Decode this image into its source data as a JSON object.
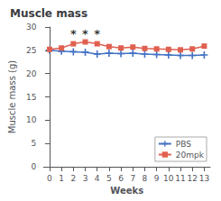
{
  "chart_data": {
    "type": "line",
    "title": "Muscle mass",
    "xlabel": "Weeks",
    "ylabel": "Muscle mass (g)",
    "x": [
      0,
      1,
      2,
      3,
      4,
      5,
      6,
      7,
      8,
      9,
      10,
      11,
      12,
      13
    ],
    "series": [
      {
        "name": "PBS",
        "color": "#4472C4",
        "marker": "plus",
        "values": [
          25.0,
          24.8,
          24.7,
          24.6,
          24.2,
          24.4,
          24.3,
          24.4,
          24.2,
          24.1,
          24.0,
          23.9,
          23.9,
          24.0
        ]
      },
      {
        "name": "20mpk",
        "color": "#E06050",
        "marker": "square",
        "values": [
          25.2,
          25.5,
          26.4,
          26.8,
          26.4,
          25.8,
          25.5,
          25.7,
          25.4,
          25.3,
          25.2,
          25.1,
          25.3,
          25.9
        ]
      }
    ],
    "annotations": [
      {
        "x": 2,
        "y": 28.6,
        "text": "*"
      },
      {
        "x": 3,
        "y": 28.6,
        "text": "*"
      },
      {
        "x": 4,
        "y": 28.6,
        "text": "*"
      }
    ],
    "xlim": [
      -0.5,
      13.5
    ],
    "xticks": [
      0,
      1,
      2,
      3,
      4,
      5,
      6,
      7,
      8,
      9,
      10,
      11,
      12,
      13
    ],
    "ylim": [
      0,
      30
    ],
    "yticks": [
      0,
      5,
      10,
      15,
      20,
      25,
      30
    ],
    "grid": false,
    "legend": "lower right"
  }
}
